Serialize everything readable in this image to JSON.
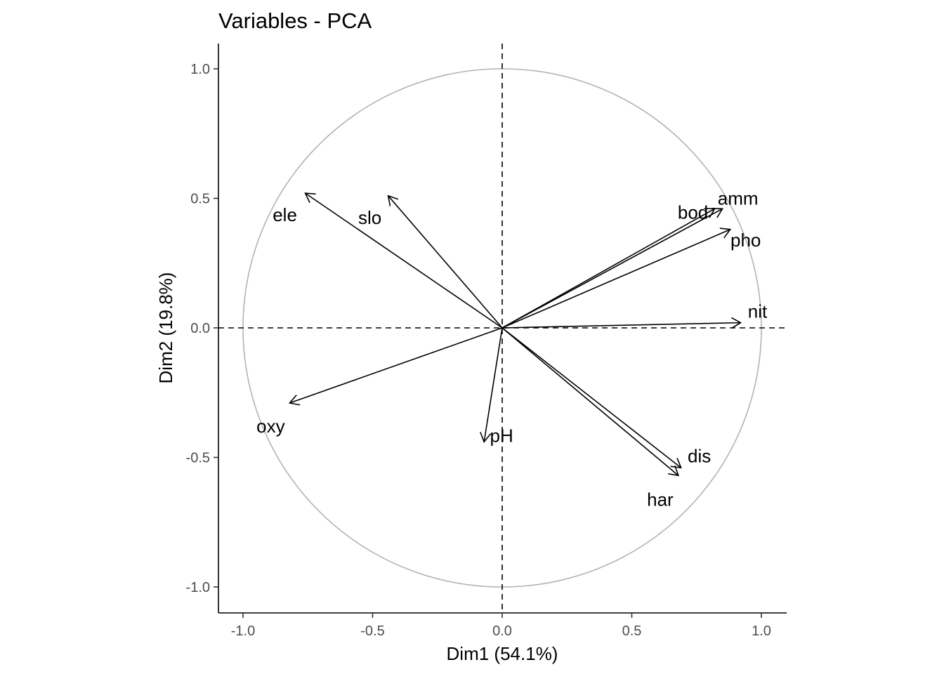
{
  "chart_data": {
    "type": "scatter",
    "subtype": "pca-variable-correlation-circle",
    "title": "Variables - PCA",
    "xlabel": "Dim1 (54.1%)",
    "ylabel": "Dim2 (19.8%)",
    "xlim": [
      -1.1,
      1.1
    ],
    "ylim": [
      -1.1,
      1.1
    ],
    "x_ticks": [
      -1.0,
      -0.5,
      0.0,
      0.5,
      1.0
    ],
    "x_tick_labels": [
      "-1.0",
      "-0.5",
      "0.0",
      "0.5",
      "1.0"
    ],
    "y_ticks": [
      -1.0,
      -0.5,
      0.0,
      0.5,
      1.0
    ],
    "y_tick_labels": [
      "-1.0",
      "-0.5",
      "0.0",
      "0.5",
      "1.0"
    ],
    "grid": false,
    "unit_circle_color": "#b3b3b3",
    "arrow_color": "#000000",
    "variables": [
      {
        "name": "amm",
        "x": 0.85,
        "y": 0.46
      },
      {
        "name": "bod",
        "x": 0.82,
        "y": 0.46
      },
      {
        "name": "pho",
        "x": 0.88,
        "y": 0.38
      },
      {
        "name": "nit",
        "x": 0.92,
        "y": 0.02
      },
      {
        "name": "ele",
        "x": -0.76,
        "y": 0.52
      },
      {
        "name": "slo",
        "x": -0.44,
        "y": 0.51
      },
      {
        "name": "oxy",
        "x": -0.82,
        "y": -0.29
      },
      {
        "name": "pH",
        "x": -0.07,
        "y": -0.44
      },
      {
        "name": "dis",
        "x": 0.69,
        "y": -0.54
      },
      {
        "name": "har",
        "x": 0.68,
        "y": -0.57
      }
    ]
  }
}
